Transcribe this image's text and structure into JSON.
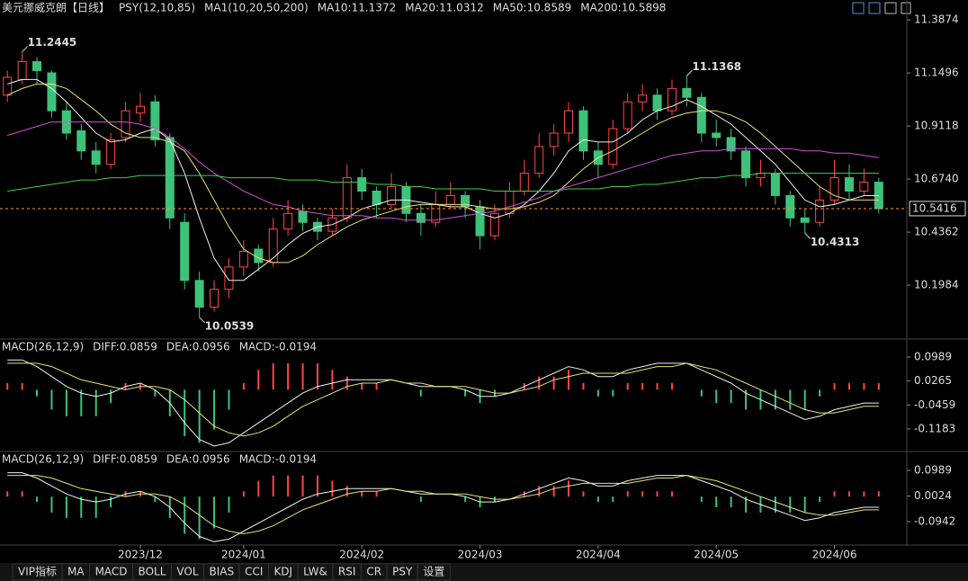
{
  "chart_data": [
    {
      "type": "candlestick",
      "title": "美元挪威克朗【日线】",
      "indicator": "PSY(12,10,85)",
      "ma_group": "MA1(10,20,50,200)",
      "up_color": "#ff4646",
      "down_color": "#3ec27a",
      "ylim": [
        9.965,
        11.416
      ],
      "yticks": [
        11.3874,
        11.1496,
        10.9118,
        {
          "value": 10.674,
          "label": "10.6740"
        },
        10.4362,
        10.1984
      ],
      "xticks": [
        {
          "value": 9,
          "label": "2023/12"
        },
        {
          "value": 16,
          "label": "2024/01"
        },
        {
          "value": 24,
          "label": "2024/02"
        },
        {
          "value": 32,
          "label": "2024/03"
        },
        {
          "value": 40,
          "label": "2024/04"
        },
        {
          "value": 48,
          "label": "2024/05"
        },
        {
          "value": 56,
          "label": "2024/06"
        }
      ],
      "last": 10.5416,
      "last_color": "#ff9a2e",
      "ohlc": [
        [
          11.05,
          11.16,
          11.02,
          11.13
        ],
        [
          11.12,
          11.2445,
          11.1,
          11.2
        ],
        [
          11.2,
          11.22,
          11.1,
          11.16
        ],
        [
          11.15,
          11.16,
          10.95,
          10.98
        ],
        [
          10.98,
          11.02,
          10.85,
          10.88
        ],
        [
          10.89,
          10.92,
          10.76,
          10.8
        ],
        [
          10.8,
          10.84,
          10.7,
          10.74
        ],
        [
          10.74,
          10.88,
          10.72,
          10.85
        ],
        [
          10.86,
          11.02,
          10.84,
          10.98
        ],
        [
          10.97,
          11.06,
          10.93,
          11.0
        ],
        [
          11.02,
          11.05,
          10.82,
          10.85
        ],
        [
          10.86,
          10.88,
          10.45,
          10.5
        ],
        [
          10.48,
          10.52,
          10.18,
          10.22
        ],
        [
          10.22,
          10.26,
          10.0539,
          10.1
        ],
        [
          10.1,
          10.22,
          10.08,
          10.18
        ],
        [
          10.18,
          10.32,
          10.14,
          10.28
        ],
        [
          10.28,
          10.4,
          10.24,
          10.35
        ],
        [
          10.36,
          10.38,
          10.26,
          10.3
        ],
        [
          10.3,
          10.5,
          10.28,
          10.45
        ],
        [
          10.45,
          10.58,
          10.42,
          10.52
        ],
        [
          10.53,
          10.56,
          10.44,
          10.48
        ],
        [
          10.48,
          10.5,
          10.4,
          10.44
        ],
        [
          10.44,
          10.54,
          10.42,
          10.5
        ],
        [
          10.5,
          10.74,
          10.48,
          10.68
        ],
        [
          10.68,
          10.72,
          10.58,
          10.62
        ],
        [
          10.62,
          10.64,
          10.5,
          10.56
        ],
        [
          10.56,
          10.7,
          10.54,
          10.64
        ],
        [
          10.64,
          10.66,
          10.48,
          10.52
        ],
        [
          10.52,
          10.56,
          10.42,
          10.48
        ],
        [
          10.48,
          10.62,
          10.46,
          10.56
        ],
        [
          10.56,
          10.66,
          10.54,
          10.6
        ],
        [
          10.6,
          10.62,
          10.5,
          10.55
        ],
        [
          10.55,
          10.58,
          10.36,
          10.42
        ],
        [
          10.42,
          10.56,
          10.4,
          10.52
        ],
        [
          10.52,
          10.66,
          10.5,
          10.62
        ],
        [
          10.62,
          10.76,
          10.6,
          10.7
        ],
        [
          10.7,
          10.88,
          10.68,
          10.82
        ],
        [
          10.82,
          10.92,
          10.78,
          10.88
        ],
        [
          10.88,
          11.02,
          10.84,
          10.98
        ],
        [
          10.98,
          11.0,
          10.76,
          10.8
        ],
        [
          10.8,
          10.84,
          10.68,
          10.74
        ],
        [
          10.74,
          10.94,
          10.72,
          10.9
        ],
        [
          10.9,
          11.06,
          10.88,
          11.02
        ],
        [
          11.02,
          11.1,
          10.98,
          11.05
        ],
        [
          11.05,
          11.08,
          10.94,
          10.98
        ],
        [
          10.98,
          11.12,
          10.96,
          11.08
        ],
        [
          11.08,
          11.1368,
          11.0,
          11.04
        ],
        [
          11.04,
          11.06,
          10.84,
          10.88
        ],
        [
          10.88,
          10.94,
          10.82,
          10.86
        ],
        [
          10.86,
          10.9,
          10.76,
          10.8
        ],
        [
          10.8,
          10.82,
          10.64,
          10.68
        ],
        [
          10.68,
          10.76,
          10.64,
          10.7
        ],
        [
          10.7,
          10.72,
          10.56,
          10.6
        ],
        [
          10.6,
          10.62,
          10.46,
          10.5
        ],
        [
          10.5,
          10.54,
          10.4313,
          10.48
        ],
        [
          10.48,
          10.64,
          10.46,
          10.58
        ],
        [
          10.58,
          10.76,
          10.56,
          10.68
        ],
        [
          10.68,
          10.74,
          10.58,
          10.62
        ],
        [
          10.62,
          10.72,
          10.6,
          10.66
        ],
        [
          10.66,
          10.68,
          10.52,
          10.5416
        ]
      ],
      "annotations": [
        {
          "x": 1,
          "y": 11.2445,
          "color": "#ff4646"
        },
        {
          "x": 13,
          "y": 10.0539,
          "color": "#3ec27a"
        },
        {
          "x": 46,
          "y": 11.1368,
          "color": "#ff4646"
        },
        {
          "x": 54,
          "y": 10.4313,
          "color": "#3ec27a"
        }
      ],
      "series": [
        {
          "name": "MA10:11.1372",
          "color": "#f0f0f0",
          "values": [
            11.1,
            11.12,
            11.12,
            11.08,
            11.02,
            10.95,
            10.88,
            10.84,
            10.85,
            10.88,
            10.9,
            10.85,
            10.7,
            10.5,
            10.32,
            10.22,
            10.22,
            10.27,
            10.32,
            10.38,
            10.43,
            10.46,
            10.47,
            10.5,
            10.54,
            10.56,
            10.58,
            10.58,
            10.57,
            10.56,
            10.55,
            10.55,
            10.52,
            10.5,
            10.52,
            10.56,
            10.62,
            10.7,
            10.8,
            10.85,
            10.84,
            10.84,
            10.88,
            10.94,
            10.98,
            11.0,
            11.03,
            11.0,
            10.96,
            10.92,
            10.86,
            10.8,
            10.74,
            10.66,
            10.58,
            10.55,
            10.56,
            10.58,
            10.6,
            10.6
          ]
        },
        {
          "name": "MA20:11.0312",
          "color": "#e8e07a",
          "values": [
            11.05,
            11.08,
            11.1,
            11.1,
            11.08,
            11.03,
            10.98,
            10.92,
            10.88,
            10.86,
            10.86,
            10.84,
            10.8,
            10.7,
            10.58,
            10.46,
            10.36,
            10.32,
            10.3,
            10.3,
            10.33,
            10.38,
            10.42,
            10.46,
            10.49,
            10.51,
            10.53,
            10.55,
            10.56,
            10.56,
            10.56,
            10.56,
            10.55,
            10.54,
            10.54,
            10.55,
            10.57,
            10.6,
            10.66,
            10.72,
            10.77,
            10.8,
            10.84,
            10.88,
            10.92,
            10.95,
            10.97,
            10.98,
            10.98,
            10.96,
            10.93,
            10.88,
            10.82,
            10.76,
            10.7,
            10.64,
            10.6,
            10.58,
            10.58,
            10.58
          ]
        },
        {
          "name": "MA50:10.8589",
          "color": "#d24fd6",
          "values": [
            10.87,
            10.89,
            10.91,
            10.93,
            10.93,
            10.93,
            10.93,
            10.93,
            10.93,
            10.92,
            10.9,
            10.86,
            10.81,
            10.75,
            10.7,
            10.66,
            10.62,
            10.59,
            10.56,
            10.55,
            10.53,
            10.52,
            10.51,
            10.51,
            10.51,
            10.5,
            10.5,
            10.49,
            10.49,
            10.49,
            10.5,
            10.51,
            10.52,
            10.53,
            10.55,
            10.57,
            10.59,
            10.62,
            10.64,
            10.66,
            10.68,
            10.7,
            10.72,
            10.74,
            10.76,
            10.78,
            10.79,
            10.8,
            10.8,
            10.81,
            10.81,
            10.81,
            10.81,
            10.81,
            10.8,
            10.8,
            10.79,
            10.79,
            10.78,
            10.77
          ]
        },
        {
          "name": "MA200:10.5898",
          "color": "#3fcf4f",
          "values": [
            10.62,
            10.63,
            10.64,
            10.65,
            10.66,
            10.67,
            10.67,
            10.68,
            10.68,
            10.69,
            10.69,
            10.69,
            10.69,
            10.69,
            10.69,
            10.68,
            10.68,
            10.68,
            10.68,
            10.67,
            10.67,
            10.67,
            10.66,
            10.66,
            10.66,
            10.65,
            10.65,
            10.64,
            10.64,
            10.63,
            10.63,
            10.63,
            10.63,
            10.62,
            10.62,
            10.62,
            10.62,
            10.62,
            10.63,
            10.63,
            10.63,
            10.64,
            10.64,
            10.65,
            10.65,
            10.66,
            10.67,
            10.68,
            10.68,
            10.69,
            10.69,
            10.7,
            10.7,
            10.7,
            10.7,
            10.7,
            10.7,
            10.7,
            10.7,
            10.7
          ]
        }
      ]
    },
    {
      "type": "macd",
      "title": "MACD(26,12,9)",
      "ylim": [
        -0.181,
        0.145
      ],
      "yticks": [
        0.0989,
        0.0265,
        -0.0459,
        -0.1183
      ],
      "series": [
        {
          "name": "DIFF:0.0859",
          "color": "#f0f0f0",
          "values": [
            0.09,
            0.09,
            0.07,
            0.04,
            0.01,
            -0.01,
            -0.02,
            -0.01,
            0.01,
            0.02,
            0.0,
            -0.04,
            -0.1,
            -0.15,
            -0.17,
            -0.16,
            -0.13,
            -0.1,
            -0.07,
            -0.04,
            -0.01,
            0.01,
            0.02,
            0.03,
            0.03,
            0.03,
            0.03,
            0.02,
            0.01,
            0.01,
            0.01,
            0.0,
            -0.02,
            -0.02,
            -0.01,
            0.01,
            0.03,
            0.05,
            0.07,
            0.06,
            0.04,
            0.04,
            0.06,
            0.07,
            0.08,
            0.08,
            0.08,
            0.06,
            0.04,
            0.02,
            -0.01,
            -0.03,
            -0.05,
            -0.07,
            -0.09,
            -0.08,
            -0.06,
            -0.05,
            -0.04,
            -0.04
          ]
        },
        {
          "name": "DEA:0.0956",
          "color": "#e8e07a",
          "values": [
            0.08,
            0.08,
            0.08,
            0.07,
            0.05,
            0.03,
            0.02,
            0.01,
            0.0,
            0.01,
            0.01,
            0.0,
            -0.03,
            -0.07,
            -0.11,
            -0.13,
            -0.14,
            -0.13,
            -0.11,
            -0.08,
            -0.05,
            -0.03,
            -0.01,
            0.01,
            0.02,
            0.02,
            0.03,
            0.02,
            0.02,
            0.01,
            0.01,
            0.01,
            0.0,
            -0.01,
            -0.01,
            0.0,
            0.01,
            0.03,
            0.04,
            0.05,
            0.05,
            0.05,
            0.05,
            0.06,
            0.07,
            0.07,
            0.08,
            0.07,
            0.06,
            0.04,
            0.02,
            0.0,
            -0.02,
            -0.04,
            -0.06,
            -0.07,
            -0.07,
            -0.06,
            -0.05,
            -0.05
          ]
        }
      ],
      "histogram": {
        "name": "MACD:-0.0194",
        "color": "#d24fd6",
        "up_color": "#ff4646",
        "down_color": "#3ec27a",
        "values": [
          0.02,
          0.02,
          -0.02,
          -0.06,
          -0.08,
          -0.08,
          -0.08,
          -0.04,
          0.02,
          0.02,
          -0.02,
          -0.08,
          -0.14,
          -0.16,
          -0.12,
          -0.06,
          0.02,
          0.06,
          0.08,
          0.08,
          0.08,
          0.08,
          0.06,
          0.04,
          0.02,
          0.02,
          0.0,
          0.0,
          -0.02,
          0.0,
          0.0,
          -0.02,
          -0.04,
          -0.02,
          0.0,
          0.02,
          0.04,
          0.04,
          0.06,
          0.02,
          -0.02,
          -0.02,
          0.02,
          0.02,
          0.02,
          0.02,
          0.0,
          -0.02,
          -0.04,
          -0.04,
          -0.06,
          -0.06,
          -0.06,
          -0.06,
          -0.06,
          -0.02,
          0.02,
          0.02,
          0.02,
          0.02
        ]
      }
    },
    {
      "type": "macd",
      "title": "MACD(26,12,9)",
      "legend": [
        "DIFF:0.0859",
        "DEA:0.0956",
        "MACD:-0.0194"
      ],
      "ylim": [
        -0.179,
        0.16
      ],
      "yticks": [
        0.0989,
        0.0024,
        -0.0942
      ]
    }
  ],
  "tabs": [
    "VIP指标",
    "MA",
    "MACD",
    "BOLL",
    "VOL",
    "BIAS",
    "CCI",
    "KDJ",
    "LW&",
    "RSI",
    "CR",
    "PSY",
    "设置"
  ]
}
